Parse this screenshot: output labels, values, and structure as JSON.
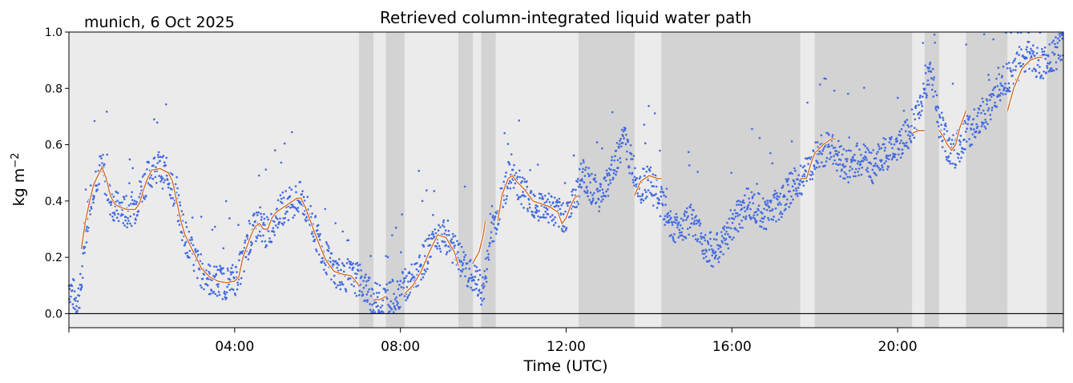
{
  "chart_data": {
    "type": "scatter",
    "title": "Retrieved column-integrated liquid water path",
    "subtitle": "munich, 6 Oct 2025",
    "xlabel": "Time (UTC)",
    "ylabel": "kg m",
    "ylabel_sup": "−2",
    "xlim": [
      0,
      24
    ],
    "ylim": [
      -0.05,
      1.0
    ],
    "xticks": [
      0,
      4,
      8,
      12,
      16,
      20,
      24
    ],
    "xtick_labels": [
      "",
      "04:00",
      "08:00",
      "12:00",
      "16:00",
      "20:00",
      ""
    ],
    "yticks": [
      0.0,
      0.2,
      0.4,
      0.6,
      0.8,
      1.0
    ],
    "ytick_labels": [
      "0.0",
      "0.2",
      "0.4",
      "0.6",
      "0.8",
      "1.0"
    ],
    "zero_line": true,
    "grid": false,
    "colors": {
      "points": "#4169e1",
      "smooth_line": "#d2691e",
      "background_light": "#ebebeb",
      "background_dark": "#d3d3d3"
    },
    "shaded_bands": [
      [
        7.0,
        7.35
      ],
      [
        7.65,
        8.1
      ],
      [
        9.4,
        9.75
      ],
      [
        9.95,
        10.3
      ],
      [
        12.3,
        13.65
      ],
      [
        14.3,
        17.65
      ],
      [
        18.0,
        20.35
      ],
      [
        20.65,
        21.0
      ],
      [
        21.65,
        22.65
      ],
      [
        23.6,
        24.0
      ]
    ],
    "series": [
      {
        "kind": "scatter",
        "values": [
          [
            0.0,
            0.1
          ],
          [
            0.1,
            0.07
          ],
          [
            0.2,
            0.04
          ],
          [
            0.3,
            0.1
          ],
          [
            0.4,
            0.27
          ],
          [
            0.5,
            0.4
          ],
          [
            0.6,
            0.46
          ],
          [
            0.7,
            0.5
          ],
          [
            0.8,
            0.52
          ],
          [
            0.9,
            0.46
          ],
          [
            1.0,
            0.4
          ],
          [
            1.2,
            0.37
          ],
          [
            1.4,
            0.36
          ],
          [
            1.6,
            0.38
          ],
          [
            1.8,
            0.46
          ],
          [
            2.0,
            0.51
          ],
          [
            2.2,
            0.51
          ],
          [
            2.4,
            0.49
          ],
          [
            2.6,
            0.4
          ],
          [
            2.8,
            0.28
          ],
          [
            3.0,
            0.2
          ],
          [
            3.2,
            0.15
          ],
          [
            3.4,
            0.12
          ],
          [
            3.6,
            0.11
          ],
          [
            3.8,
            0.11
          ],
          [
            4.0,
            0.12
          ],
          [
            4.2,
            0.18
          ],
          [
            4.4,
            0.28
          ],
          [
            4.6,
            0.33
          ],
          [
            4.8,
            0.28
          ],
          [
            5.0,
            0.35
          ],
          [
            5.2,
            0.38
          ],
          [
            5.4,
            0.4
          ],
          [
            5.6,
            0.41
          ],
          [
            5.8,
            0.35
          ],
          [
            6.0,
            0.27
          ],
          [
            6.2,
            0.2
          ],
          [
            6.4,
            0.15
          ],
          [
            6.6,
            0.14
          ],
          [
            6.8,
            0.13
          ],
          [
            7.0,
            0.12
          ],
          [
            7.2,
            0.08
          ],
          [
            7.4,
            0.05
          ],
          [
            7.6,
            0.05
          ],
          [
            7.8,
            0.06
          ],
          [
            8.0,
            0.08
          ],
          [
            8.2,
            0.1
          ],
          [
            8.4,
            0.15
          ],
          [
            8.6,
            0.2
          ],
          [
            8.8,
            0.27
          ],
          [
            9.0,
            0.28
          ],
          [
            9.2,
            0.25
          ],
          [
            9.4,
            0.2
          ],
          [
            9.6,
            0.15
          ],
          [
            9.8,
            0.12
          ],
          [
            10.0,
            0.08
          ],
          [
            10.2,
            0.28
          ],
          [
            10.4,
            0.38
          ],
          [
            10.6,
            0.48
          ],
          [
            10.8,
            0.47
          ],
          [
            11.0,
            0.43
          ],
          [
            11.2,
            0.4
          ],
          [
            11.4,
            0.38
          ],
          [
            11.6,
            0.38
          ],
          [
            11.8,
            0.35
          ],
          [
            12.0,
            0.35
          ],
          [
            12.2,
            0.4
          ],
          [
            12.4,
            0.5
          ],
          [
            12.6,
            0.45
          ],
          [
            12.8,
            0.42
          ],
          [
            13.0,
            0.46
          ],
          [
            13.2,
            0.55
          ],
          [
            13.4,
            0.62
          ],
          [
            13.6,
            0.52
          ],
          [
            13.8,
            0.45
          ],
          [
            14.0,
            0.47
          ],
          [
            14.2,
            0.42
          ],
          [
            14.4,
            0.36
          ],
          [
            14.6,
            0.3
          ],
          [
            14.8,
            0.32
          ],
          [
            15.0,
            0.33
          ],
          [
            15.2,
            0.28
          ],
          [
            15.4,
            0.24
          ],
          [
            15.6,
            0.22
          ],
          [
            15.8,
            0.25
          ],
          [
            16.0,
            0.32
          ],
          [
            16.2,
            0.35
          ],
          [
            16.4,
            0.4
          ],
          [
            16.6,
            0.38
          ],
          [
            16.8,
            0.35
          ],
          [
            17.0,
            0.38
          ],
          [
            17.2,
            0.4
          ],
          [
            17.4,
            0.44
          ],
          [
            17.6,
            0.47
          ],
          [
            17.8,
            0.5
          ],
          [
            18.0,
            0.55
          ],
          [
            18.2,
            0.58
          ],
          [
            18.4,
            0.6
          ],
          [
            18.6,
            0.55
          ],
          [
            18.8,
            0.52
          ],
          [
            19.0,
            0.54
          ],
          [
            19.2,
            0.55
          ],
          [
            19.4,
            0.52
          ],
          [
            19.6,
            0.56
          ],
          [
            19.8,
            0.57
          ],
          [
            20.0,
            0.6
          ],
          [
            20.2,
            0.63
          ],
          [
            20.4,
            0.68
          ],
          [
            20.6,
            0.75
          ],
          [
            20.8,
            0.88
          ],
          [
            21.0,
            0.68
          ],
          [
            21.2,
            0.6
          ],
          [
            21.4,
            0.57
          ],
          [
            21.6,
            0.63
          ],
          [
            21.8,
            0.66
          ],
          [
            22.0,
            0.7
          ],
          [
            22.2,
            0.72
          ],
          [
            22.4,
            0.78
          ],
          [
            22.6,
            0.83
          ],
          [
            22.8,
            0.86
          ],
          [
            23.0,
            0.9
          ],
          [
            23.2,
            0.92
          ],
          [
            23.4,
            0.88
          ],
          [
            23.6,
            0.9
          ],
          [
            23.8,
            0.92
          ],
          [
            24.0,
            0.95
          ]
        ]
      },
      {
        "kind": "line",
        "segments": [
          [
            [
              0.3,
              0.23
            ],
            [
              0.4,
              0.33
            ],
            [
              0.5,
              0.4
            ],
            [
              0.6,
              0.46
            ],
            [
              0.7,
              0.49
            ],
            [
              0.8,
              0.52
            ],
            [
              0.9,
              0.48
            ],
            [
              1.0,
              0.42
            ],
            [
              1.1,
              0.39
            ],
            [
              1.2,
              0.38
            ],
            [
              1.4,
              0.37
            ],
            [
              1.6,
              0.37
            ],
            [
              1.7,
              0.39
            ],
            [
              1.8,
              0.44
            ],
            [
              1.9,
              0.48
            ],
            [
              2.0,
              0.51
            ],
            [
              2.2,
              0.515
            ],
            [
              2.4,
              0.5
            ],
            [
              2.5,
              0.47
            ],
            [
              2.6,
              0.4
            ],
            [
              2.7,
              0.33
            ],
            [
              2.8,
              0.28
            ],
            [
              3.0,
              0.22
            ],
            [
              3.2,
              0.16
            ],
            [
              3.4,
              0.13
            ],
            [
              3.6,
              0.115
            ],
            [
              3.8,
              0.11
            ],
            [
              4.0,
              0.115
            ],
            [
              4.1,
              0.13
            ],
            [
              4.2,
              0.2
            ],
            [
              4.3,
              0.24
            ],
            [
              4.4,
              0.28
            ],
            [
              4.5,
              0.31
            ],
            [
              4.6,
              0.32
            ],
            [
              4.7,
              0.3
            ],
            [
              4.8,
              0.3
            ],
            [
              4.9,
              0.34
            ],
            [
              5.0,
              0.36
            ],
            [
              5.2,
              0.38
            ],
            [
              5.4,
              0.4
            ],
            [
              5.5,
              0.41
            ],
            [
              5.6,
              0.41
            ],
            [
              5.7,
              0.38
            ],
            [
              5.8,
              0.34
            ],
            [
              6.0,
              0.26
            ],
            [
              6.2,
              0.19
            ],
            [
              6.4,
              0.15
            ],
            [
              6.6,
              0.14
            ],
            [
              6.8,
              0.135
            ],
            [
              6.9,
              0.12
            ],
            [
              7.0,
              0.1
            ]
          ],
          [
            [
              7.35,
              0.05
            ],
            [
              7.5,
              0.05
            ],
            [
              7.65,
              0.06
            ]
          ],
          [
            [
              8.1,
              0.07
            ],
            [
              8.3,
              0.1
            ],
            [
              8.5,
              0.15
            ],
            [
              8.7,
              0.22
            ],
            [
              8.9,
              0.28
            ],
            [
              9.1,
              0.27
            ],
            [
              9.3,
              0.22
            ],
            [
              9.4,
              0.17
            ]
          ],
          [
            [
              9.75,
              0.18
            ],
            [
              9.9,
              0.22
            ],
            [
              10.0,
              0.28
            ],
            [
              10.05,
              0.33
            ]
          ],
          [
            [
              10.35,
              0.33
            ],
            [
              10.45,
              0.42
            ],
            [
              10.6,
              0.48
            ],
            [
              10.7,
              0.49
            ],
            [
              10.8,
              0.47
            ],
            [
              11.0,
              0.44
            ],
            [
              11.2,
              0.4
            ],
            [
              11.4,
              0.39
            ],
            [
              11.6,
              0.38
            ],
            [
              11.8,
              0.36
            ],
            [
              11.9,
              0.32
            ],
            [
              12.0,
              0.34
            ],
            [
              12.1,
              0.38
            ],
            [
              12.2,
              0.41
            ],
            [
              12.3,
              0.42
            ]
          ],
          [
            [
              13.65,
              0.42
            ],
            [
              13.8,
              0.47
            ],
            [
              14.0,
              0.49
            ],
            [
              14.2,
              0.48
            ],
            [
              14.3,
              0.48
            ]
          ],
          [
            [
              17.65,
              0.48
            ],
            [
              17.8,
              0.48
            ],
            [
              17.9,
              0.53
            ],
            [
              18.0,
              0.57
            ],
            [
              18.2,
              0.6
            ],
            [
              18.4,
              0.62
            ],
            [
              18.5,
              0.62
            ]
          ],
          [
            [
              20.35,
              0.64
            ],
            [
              20.5,
              0.65
            ],
            [
              20.65,
              0.65
            ]
          ],
          [
            [
              21.0,
              0.65
            ],
            [
              21.1,
              0.63
            ],
            [
              21.2,
              0.6
            ],
            [
              21.3,
              0.58
            ],
            [
              21.4,
              0.6
            ],
            [
              21.5,
              0.66
            ],
            [
              21.6,
              0.7
            ],
            [
              21.65,
              0.72
            ]
          ],
          [
            [
              22.65,
              0.72
            ],
            [
              22.8,
              0.8
            ],
            [
              23.0,
              0.87
            ],
            [
              23.2,
              0.9
            ],
            [
              23.4,
              0.91
            ],
            [
              23.5,
              0.91
            ]
          ]
        ]
      }
    ]
  }
}
